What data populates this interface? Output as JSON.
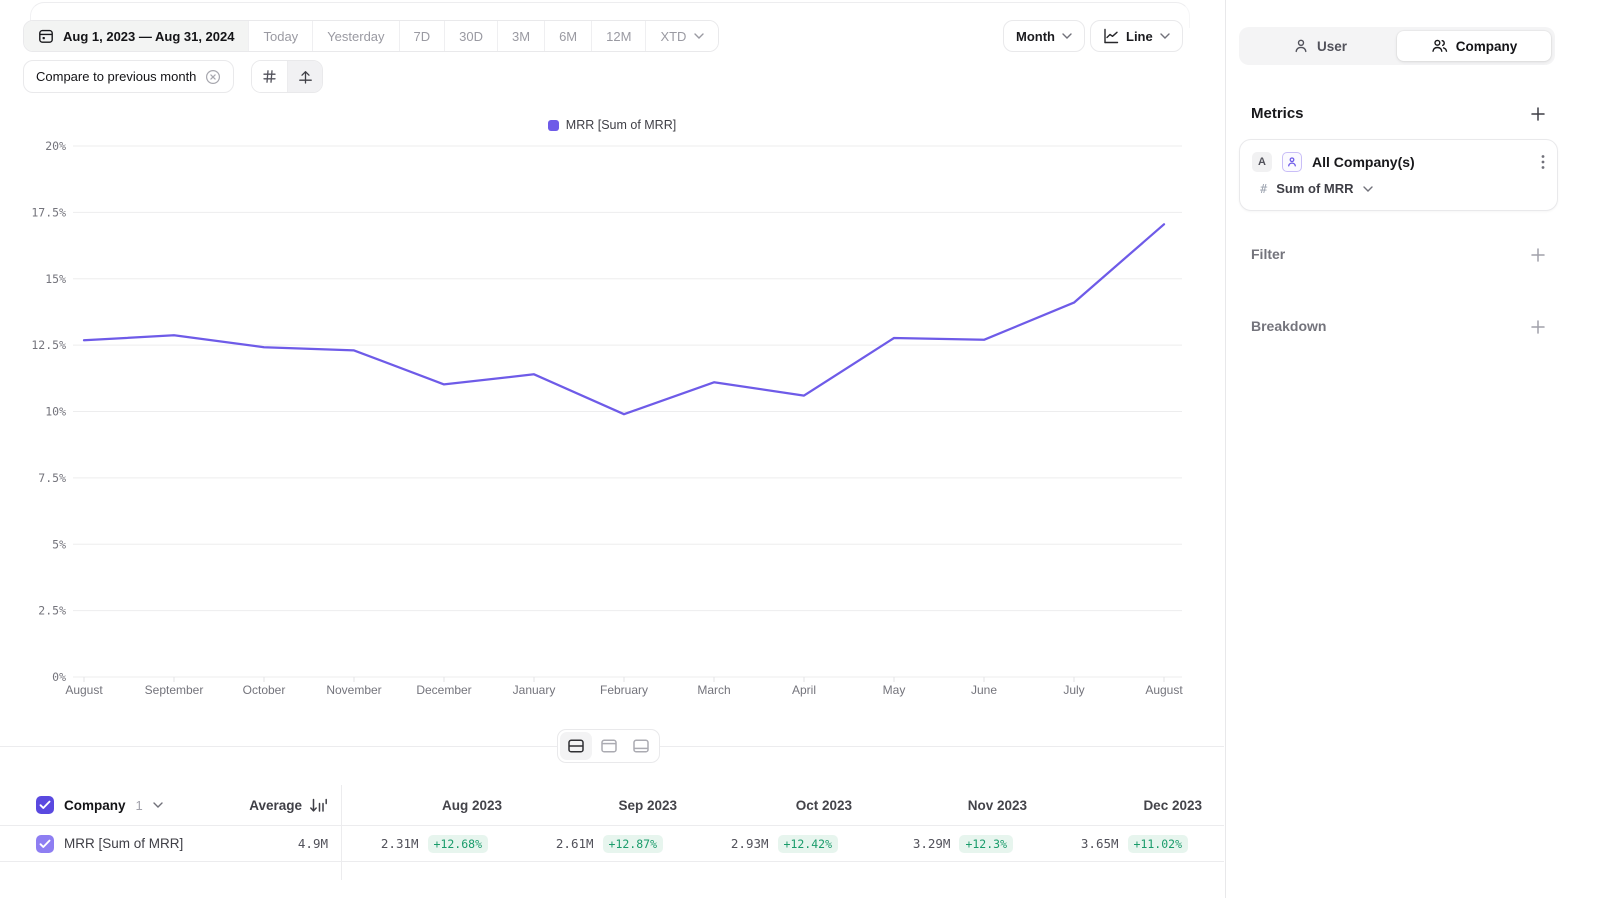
{
  "toolbar": {
    "date_range": "Aug 1, 2023 — Aug 31, 2024",
    "presets": [
      "Today",
      "Yesterday",
      "7D",
      "30D",
      "3M",
      "6M",
      "12M"
    ],
    "xtd_label": "XTD",
    "granularity_label": "Month",
    "chart_type_label": "Line",
    "compare_chip": "Compare to previous month"
  },
  "chart_data": {
    "type": "line",
    "legend": [
      "MRR [Sum of MRR]"
    ],
    "x": [
      "August",
      "September",
      "October",
      "November",
      "December",
      "January",
      "February",
      "March",
      "April",
      "May",
      "June",
      "July",
      "August"
    ],
    "series": [
      {
        "name": "MRR [Sum of MRR]",
        "values": [
          12.68,
          12.87,
          12.42,
          12.3,
          11.02,
          11.4,
          9.9,
          11.1,
          10.6,
          12.77,
          12.7,
          14.1,
          17.05
        ]
      }
    ],
    "ylim": [
      0,
      20
    ],
    "ytick_step": 2.5,
    "yticks": [
      "0%",
      "2.5%",
      "5%",
      "7.5%",
      "10%",
      "12.5%",
      "15%",
      "17.5%",
      "20%"
    ],
    "grid": true,
    "legend_position": "top-center",
    "unit": "percent-growth-vs-previous-month"
  },
  "view_toggle": [
    "split-view",
    "chart-only",
    "table-only"
  ],
  "table": {
    "header": {
      "entity": "Company",
      "entity_count": "1",
      "average_label": "Average"
    },
    "columns": [
      "Aug 2023",
      "Sep 2023",
      "Oct 2023",
      "Nov 2023",
      "Dec 2023"
    ],
    "rows": [
      {
        "name": "MRR [Sum of MRR]",
        "average": "4.9M",
        "values": [
          "2.31M",
          "2.61M",
          "2.93M",
          "3.29M",
          "3.65M"
        ],
        "changes": [
          "+12.68%",
          "+12.87%",
          "+12.42%",
          "+12.3%",
          "+11.02%"
        ]
      }
    ]
  },
  "sidebar": {
    "toggle": {
      "user": "User",
      "company": "Company",
      "selected": "Company"
    },
    "metrics_title": "Metrics",
    "metric": {
      "badge": "A",
      "name": "All Company(s)",
      "aggregation": "Sum of MRR"
    },
    "filter_label": "Filter",
    "breakdown_label": "Breakdown"
  },
  "colors": {
    "accent_line": "#6e5be8",
    "checkbox_header": "#5a49e0",
    "checkbox_row": "#8e7ef2",
    "positive_text": "#1a9c6b",
    "positive_bg": "#e7f5ee"
  }
}
